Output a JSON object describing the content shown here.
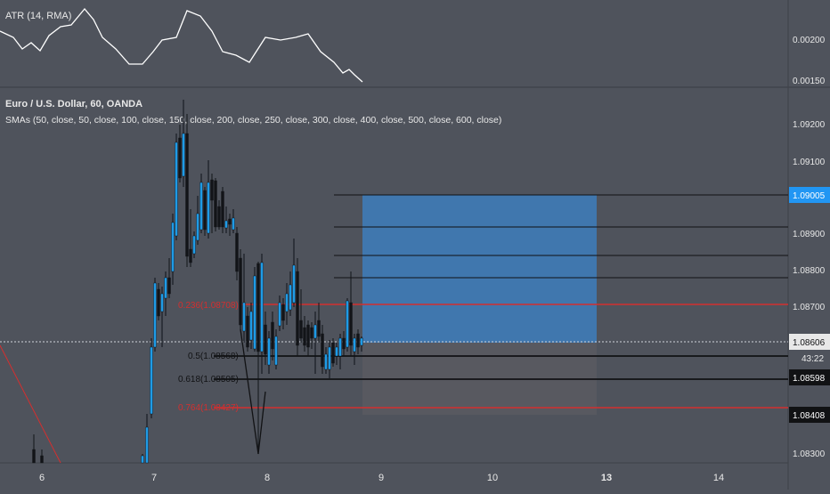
{
  "atr_panel": {
    "label": "ATR (14, RMA)",
    "axis_labels": [
      "0.00200",
      "0.00150"
    ]
  },
  "main_panel": {
    "title": "Euro / U.S. Dollar, 60, OANDA",
    "indicator": "SMAs (50, close, 50, close, 100, close, 150, close, 200, close, 250, close, 300, close, 400, close, 500, close, 600, close)",
    "price_labels": [
      "1.09200",
      "1.09100",
      "1.08900",
      "1.08800",
      "1.08700",
      "1.08300"
    ],
    "highlight_labels": {
      "target": "1.09005",
      "current": "1.08606",
      "countdown": "43:22",
      "entry_line": "1.08598",
      "stop": "1.08408"
    },
    "fib_labels": {
      "f0236": "0.236(1.08708)",
      "f05": "0.5(1.08568)",
      "f0618": "0.618(1.08505)",
      "f0764": "0.764(1.08427)"
    }
  },
  "time_axis": {
    "labels": [
      "6",
      "7",
      "8",
      "9",
      "10",
      "13",
      "14"
    ]
  },
  "colors": {
    "background": "#4f535c",
    "bull": "#1e9be6",
    "bear": "#121418",
    "fib_red": "#d32f2f",
    "target_zone": "#3f7bb5",
    "stop_zone": "#585960",
    "axis_highlight": "#2196f3"
  }
}
